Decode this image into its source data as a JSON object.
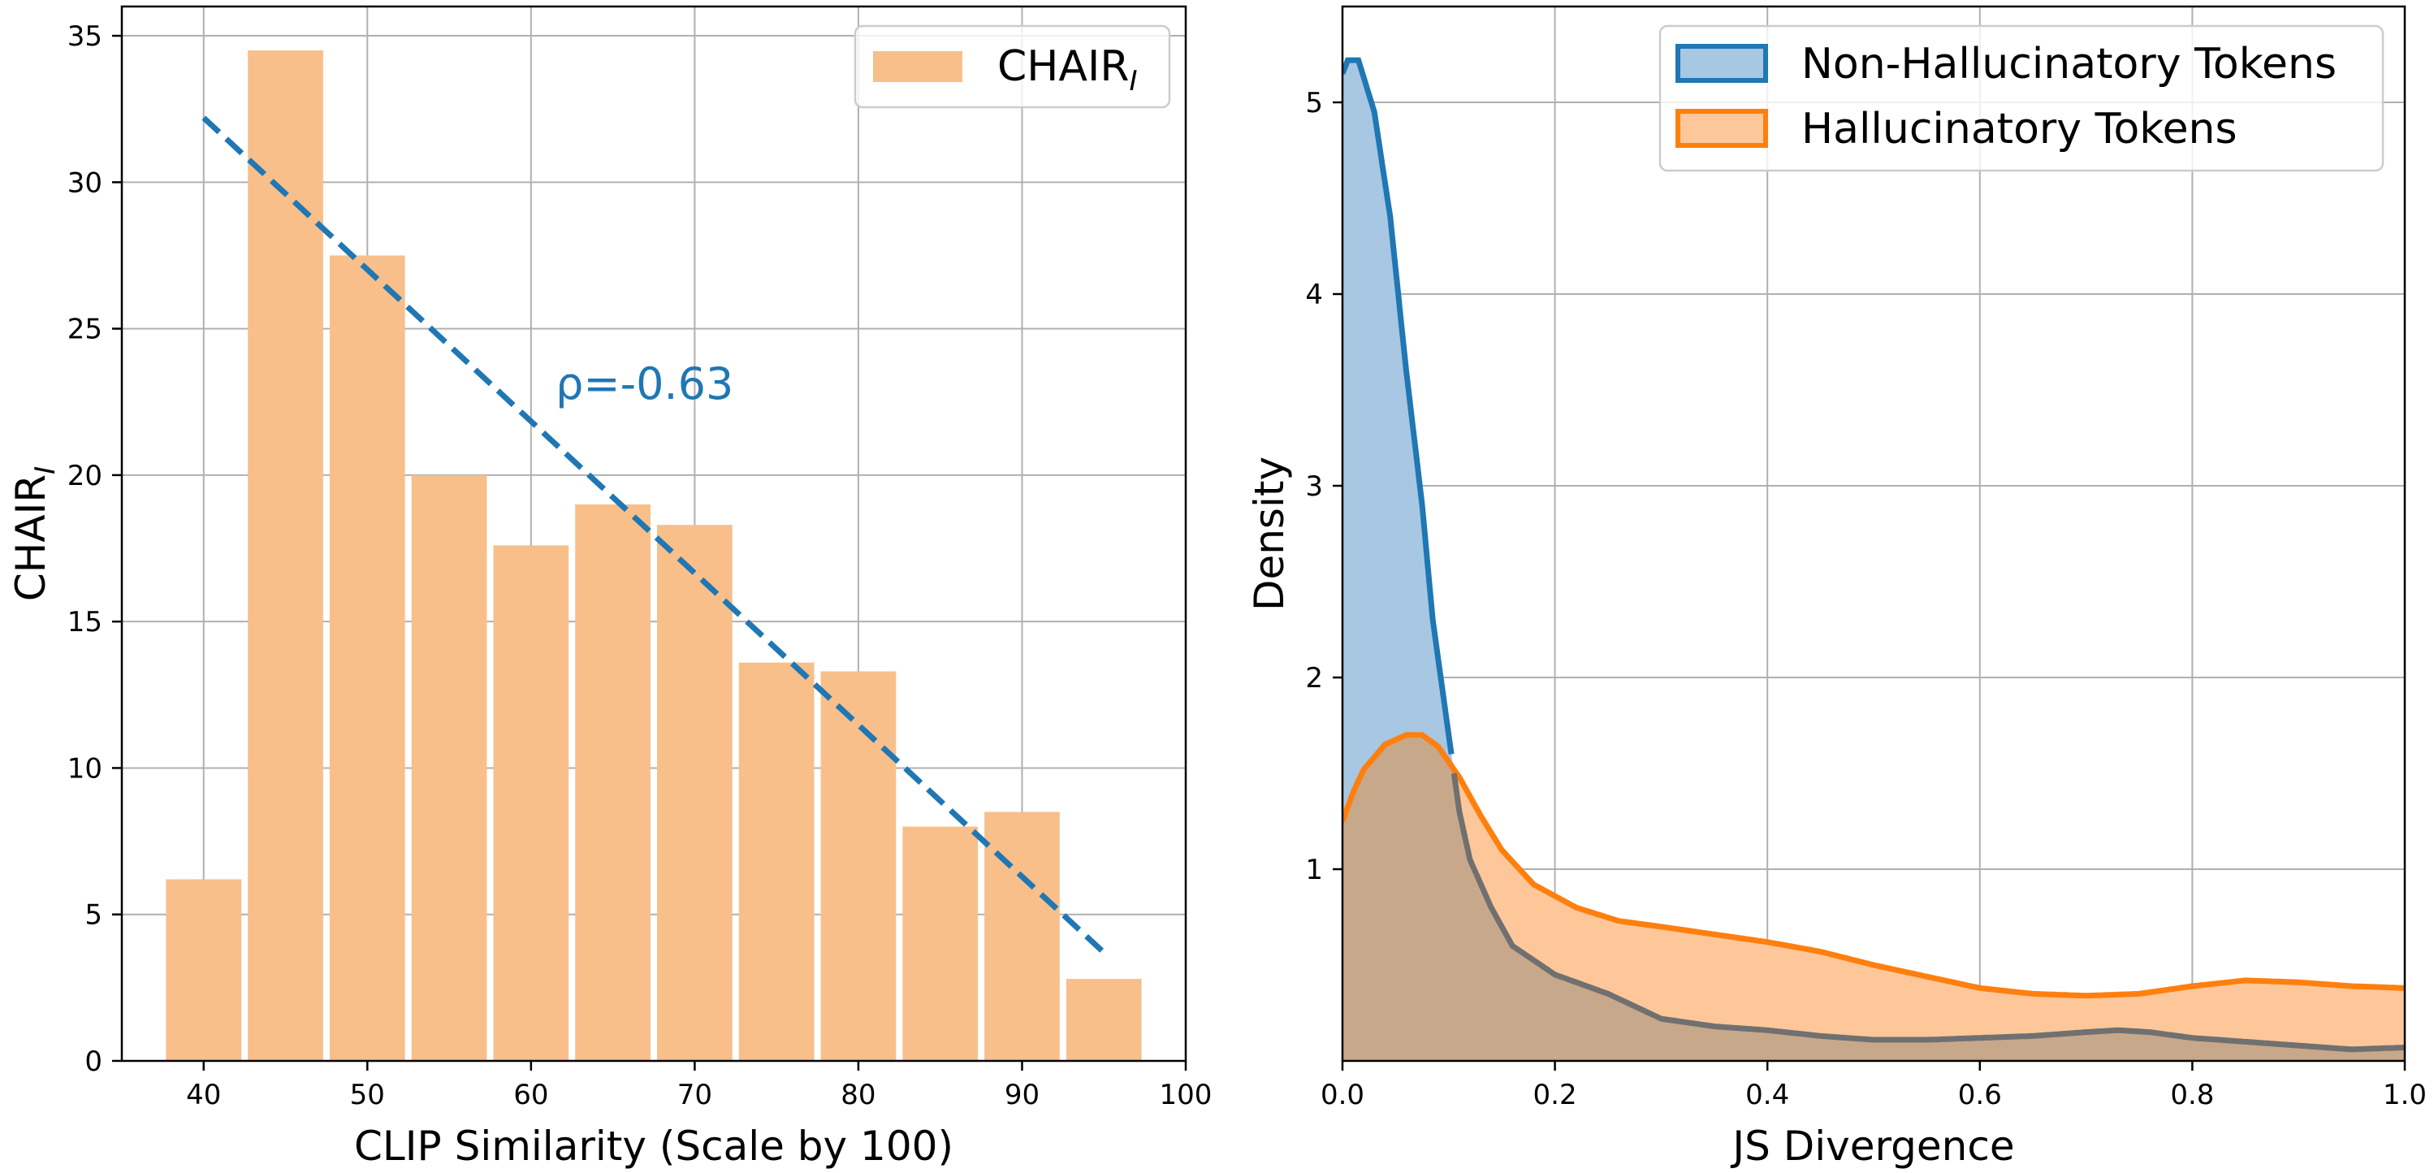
{
  "colors": {
    "bar": "#f8bf8a",
    "trend": "#1f77b4",
    "blue_line": "#1f77b4",
    "blue_fill": "#a7c7e2",
    "orange_line": "#ff7f0e",
    "orange_fill": "#fdc79a",
    "overlap_fill": "#c8a88a",
    "overlap_line": "#707070",
    "grid": "#b0b0b0"
  },
  "chart_data": [
    {
      "type": "bar",
      "xlabel": "CLIP Similarity (Scale by 100)",
      "ylabel_main": "CHAIR",
      "ylabel_sub": "I",
      "legend_main": "CHAIR",
      "legend_sub": "I",
      "legend_position": "upper-right",
      "grid": true,
      "xlim": [
        35,
        100
      ],
      "ylim": [
        0,
        36
      ],
      "xticks": [
        40,
        50,
        60,
        70,
        80,
        90,
        100
      ],
      "yticks": [
        0,
        5,
        10,
        15,
        20,
        25,
        30,
        35
      ],
      "bar_width": 4.6,
      "bars": [
        {
          "x": 40,
          "value": 6.2
        },
        {
          "x": 45,
          "value": 34.5
        },
        {
          "x": 50,
          "value": 27.5
        },
        {
          "x": 55,
          "value": 20.0
        },
        {
          "x": 60,
          "value": 17.6
        },
        {
          "x": 65,
          "value": 19.0
        },
        {
          "x": 70,
          "value": 18.3
        },
        {
          "x": 75,
          "value": 13.6
        },
        {
          "x": 80,
          "value": 13.3
        },
        {
          "x": 85,
          "value": 8.0
        },
        {
          "x": 90,
          "value": 8.5
        },
        {
          "x": 95,
          "value": 2.8
        }
      ],
      "trendline": {
        "x": [
          40,
          95
        ],
        "y": [
          32.2,
          3.7
        ],
        "style": "dashed"
      },
      "annotation": {
        "text": "ρ=-0.63",
        "x": 61.5,
        "y": 22.6
      }
    },
    {
      "type": "area",
      "xlabel": "JS Divergence",
      "ylabel": "Density",
      "legend_position": "upper-right",
      "grid": true,
      "xlim": [
        0,
        1
      ],
      "ylim": [
        0,
        5.5
      ],
      "xticks": [
        0.0,
        0.2,
        0.4,
        0.6,
        0.8,
        1.0
      ],
      "xtick_labels": [
        "0.0",
        "0.2",
        "0.4",
        "0.6",
        "0.8",
        "1.0"
      ],
      "yticks": [
        1,
        2,
        3,
        4,
        5
      ],
      "series": [
        {
          "name": "Non-Hallucinatory Tokens",
          "x": [
            0,
            0.005,
            0.015,
            0.03,
            0.045,
            0.06,
            0.075,
            0.085,
            0.1,
            0.11,
            0.12,
            0.14,
            0.16,
            0.2,
            0.25,
            0.3,
            0.35,
            0.4,
            0.45,
            0.5,
            0.55,
            0.6,
            0.65,
            0.7,
            0.73,
            0.76,
            0.8,
            0.85,
            0.9,
            0.95,
            1.0
          ],
          "y": [
            5.15,
            5.22,
            5.22,
            4.95,
            4.4,
            3.6,
            2.9,
            2.3,
            1.7,
            1.3,
            1.05,
            0.8,
            0.6,
            0.45,
            0.35,
            0.22,
            0.18,
            0.16,
            0.13,
            0.11,
            0.11,
            0.12,
            0.13,
            0.15,
            0.16,
            0.15,
            0.12,
            0.1,
            0.08,
            0.06,
            0.07
          ]
        },
        {
          "name": "Hallucinatory Tokens",
          "x": [
            0,
            0.01,
            0.02,
            0.04,
            0.06,
            0.075,
            0.09,
            0.11,
            0.13,
            0.15,
            0.18,
            0.22,
            0.26,
            0.3,
            0.35,
            0.4,
            0.45,
            0.5,
            0.55,
            0.6,
            0.65,
            0.7,
            0.75,
            0.8,
            0.85,
            0.9,
            0.95,
            1.0
          ],
          "y": [
            1.25,
            1.4,
            1.52,
            1.65,
            1.7,
            1.7,
            1.64,
            1.48,
            1.28,
            1.1,
            0.92,
            0.8,
            0.73,
            0.7,
            0.66,
            0.62,
            0.57,
            0.5,
            0.44,
            0.38,
            0.35,
            0.34,
            0.35,
            0.39,
            0.42,
            0.41,
            0.39,
            0.38
          ]
        }
      ]
    }
  ]
}
